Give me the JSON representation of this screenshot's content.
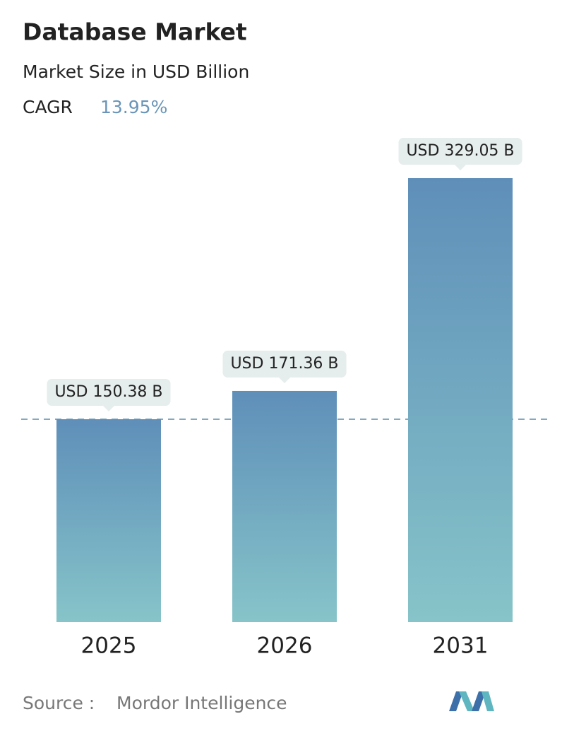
{
  "chart_data": {
    "type": "bar",
    "title": "Database Market",
    "subtitle": "Market Size in USD Billion",
    "cagr_label": "CAGR",
    "cagr_value": "13.95%",
    "categories": [
      "2025",
      "2026",
      "2031"
    ],
    "values": [
      150.38,
      171.36,
      329.05
    ],
    "value_labels": [
      "USD 150.38 B",
      "USD 171.36 B",
      "USD 329.05 B"
    ],
    "color_top": "#5f8fb9",
    "color_bottom": "#86c4c9",
    "source_label": "Source :",
    "source": "Mordor Intelligence"
  }
}
